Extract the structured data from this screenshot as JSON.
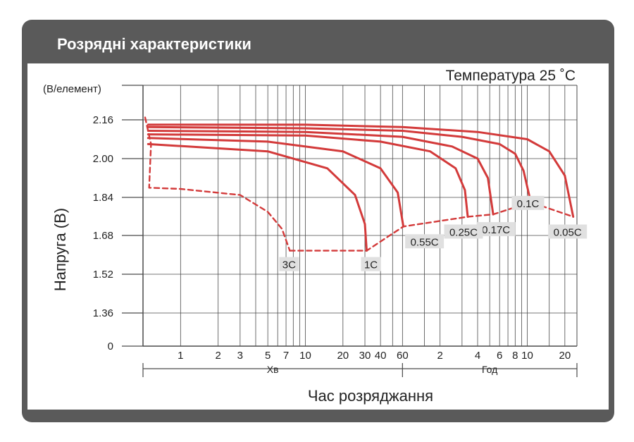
{
  "header": {
    "title": "Розрядні характеристики"
  },
  "colors": {
    "frame": "#5a5a5a",
    "curve": "#d33a3a",
    "grid": "#4a4a4a",
    "label_bg": "#e0e0e0",
    "text": "#222222"
  },
  "chart_data": {
    "type": "line",
    "title": "Температура 25 ˚C",
    "ylabel": "Напруга (В)",
    "yunit": "(В/елемент)",
    "xlabel": "Час розряджання",
    "x_scale": "log",
    "x_unit_groups": [
      {
        "label": "Хв",
        "range_minutes": [
          0.5,
          60
        ]
      },
      {
        "label": "Год",
        "range_minutes": [
          60,
          1500
        ]
      }
    ],
    "y_ticks": [
      "2.16",
      "2.00",
      "1.84",
      "1.68",
      "1.52",
      "1.36",
      "0"
    ],
    "x_ticks": [
      {
        "label": "1",
        "minutes": 1
      },
      {
        "label": "2",
        "minutes": 2
      },
      {
        "label": "3",
        "minutes": 3
      },
      {
        "label": "5",
        "minutes": 5
      },
      {
        "label": "7",
        "minutes": 7
      },
      {
        "label": "10",
        "minutes": 10
      },
      {
        "label": "20",
        "minutes": 20
      },
      {
        "label": "30",
        "minutes": 30
      },
      {
        "label": "40",
        "minutes": 40
      },
      {
        "label": "60",
        "minutes": 60
      },
      {
        "label": "2",
        "minutes": 120
      },
      {
        "label": "4",
        "minutes": 240
      },
      {
        "label": "6",
        "minutes": 360
      },
      {
        "label": "8",
        "minutes": 480
      },
      {
        "label": "10",
        "minutes": 600
      },
      {
        "label": "20",
        "minutes": 1200
      }
    ],
    "series": [
      {
        "name": "0.05C",
        "label": "0.05C",
        "dashed": false,
        "points": [
          [
            0.55,
            2.14
          ],
          [
            10,
            2.14
          ],
          [
            60,
            2.13
          ],
          [
            240,
            2.11
          ],
          [
            600,
            2.08
          ],
          [
            900,
            2.03
          ],
          [
            1200,
            1.93
          ],
          [
            1400,
            1.76
          ]
        ]
      },
      {
        "name": "0.1C",
        "label": "0.1C",
        "dashed": false,
        "points": [
          [
            0.55,
            2.13
          ],
          [
            10,
            2.125
          ],
          [
            60,
            2.115
          ],
          [
            180,
            2.09
          ],
          [
            360,
            2.06
          ],
          [
            480,
            2.02
          ],
          [
            560,
            1.95
          ],
          [
            640,
            1.82
          ]
        ]
      },
      {
        "name": "0.17C",
        "label": "0.17C",
        "dashed": false,
        "points": [
          [
            0.55,
            2.115
          ],
          [
            10,
            2.11
          ],
          [
            60,
            2.09
          ],
          [
            150,
            2.05
          ],
          [
            240,
            2.0
          ],
          [
            290,
            1.92
          ],
          [
            320,
            1.77
          ]
        ]
      },
      {
        "name": "0.25C",
        "label": "0.25C",
        "dashed": false,
        "points": [
          [
            0.55,
            2.1
          ],
          [
            10,
            2.095
          ],
          [
            40,
            2.07
          ],
          [
            100,
            2.03
          ],
          [
            160,
            1.96
          ],
          [
            190,
            1.87
          ],
          [
            200,
            1.76
          ]
        ]
      },
      {
        "name": "0.55C",
        "label": "0.55C",
        "dashed": false,
        "points": [
          [
            0.55,
            2.085
          ],
          [
            5,
            2.07
          ],
          [
            20,
            2.03
          ],
          [
            40,
            1.96
          ],
          [
            55,
            1.86
          ],
          [
            61,
            1.72
          ]
        ]
      },
      {
        "name": "1C",
        "label": "1C",
        "dashed": false,
        "points": [
          [
            0.55,
            2.06
          ],
          [
            5,
            2.03
          ],
          [
            15,
            1.96
          ],
          [
            25,
            1.85
          ],
          [
            30,
            1.73
          ],
          [
            31,
            1.62
          ]
        ]
      },
      {
        "name": "3C",
        "label": "3C",
        "dashed": true,
        "points": [
          [
            0.52,
            2.17
          ],
          [
            0.58,
            2.06
          ],
          [
            0.56,
            1.88
          ],
          [
            1,
            1.875
          ],
          [
            3,
            1.85
          ],
          [
            5,
            1.78
          ],
          [
            6.5,
            1.71
          ],
          [
            7.5,
            1.62
          ]
        ]
      },
      {
        "name": "cut-off",
        "label": "",
        "dashed": true,
        "points": [
          [
            7.5,
            1.62
          ],
          [
            31,
            1.62
          ],
          [
            61,
            1.72
          ],
          [
            200,
            1.76
          ],
          [
            320,
            1.77
          ],
          [
            640,
            1.82
          ],
          [
            1400,
            1.76
          ]
        ]
      }
    ]
  }
}
